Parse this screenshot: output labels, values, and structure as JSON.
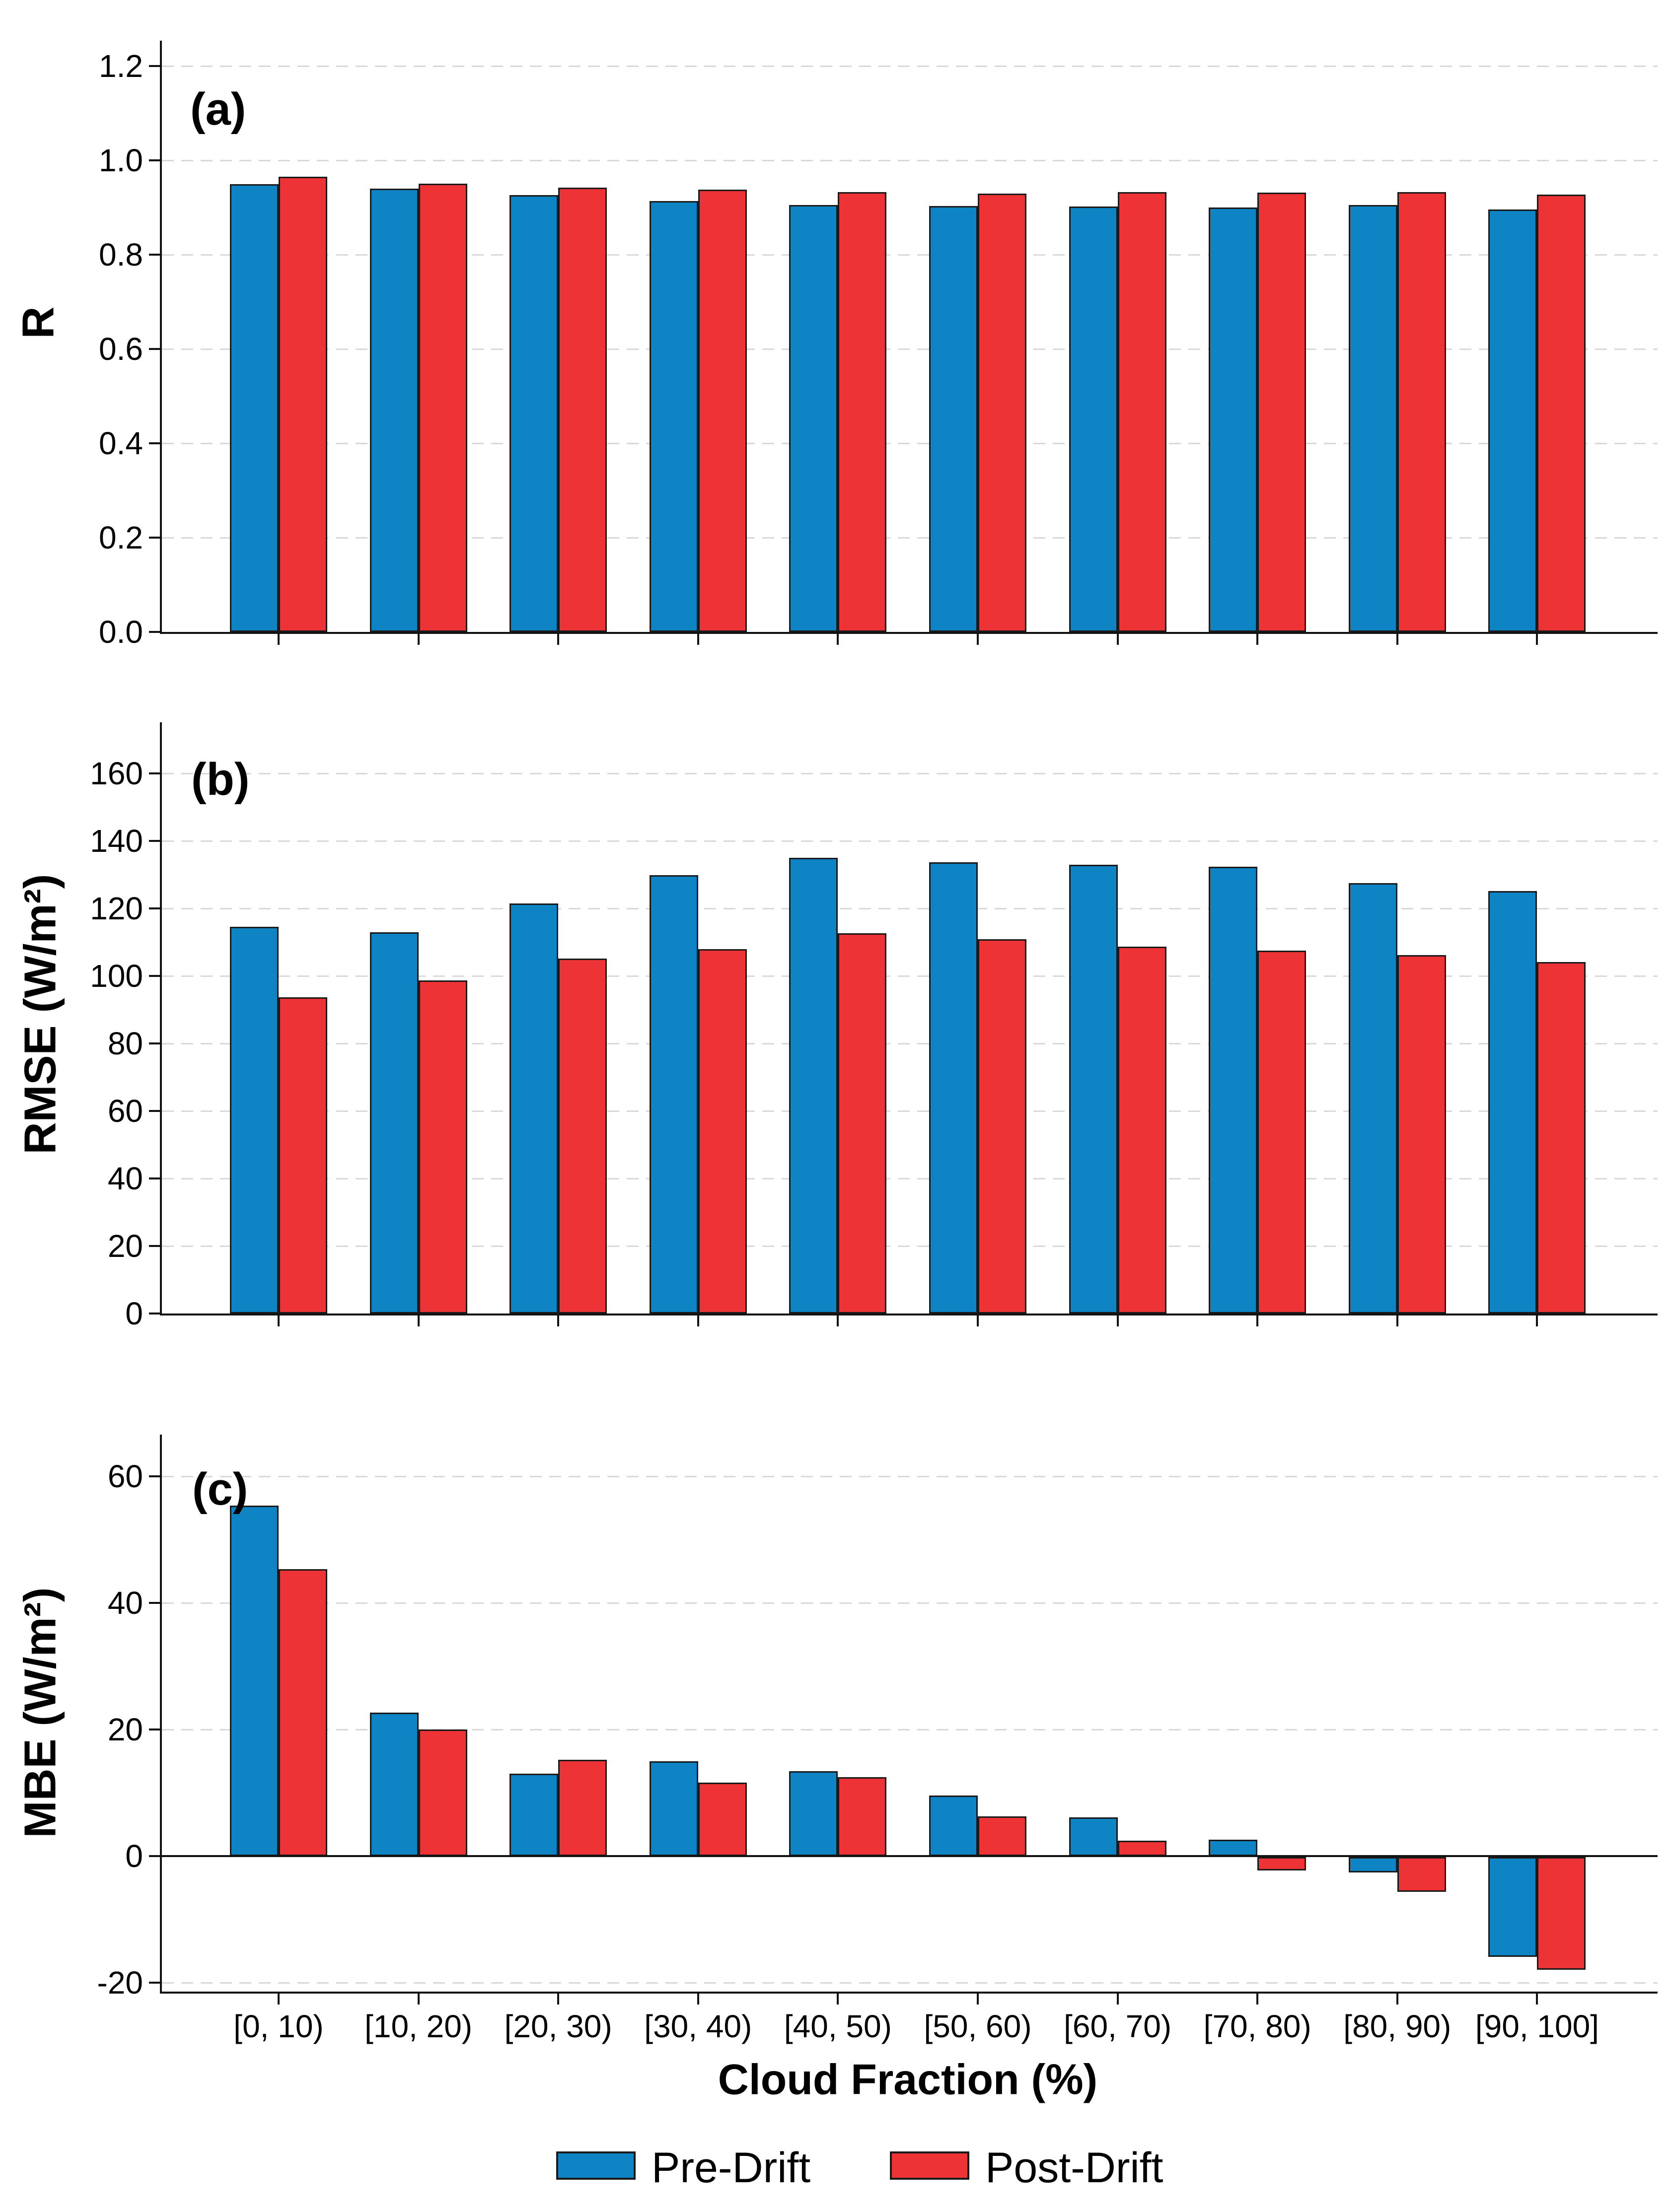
{
  "chart_data": {
    "type": "bar",
    "title": "",
    "xlabel": "Cloud Fraction (%)",
    "grid": "horizontal-dashed",
    "legend_position": "bottom",
    "categories": [
      "[0, 10)",
      "[10, 20)",
      "[20, 30)",
      "[30, 40)",
      "[40, 50)",
      "[50, 60)",
      "[60, 70)",
      "[70, 80)",
      "[80, 90)",
      "[90, 100]"
    ],
    "panels": [
      {
        "letter": "(a)",
        "ylabel": "R",
        "ylim": [
          0,
          1.28
        ],
        "yticks": [
          {
            "value": 0.0,
            "label": "0.0"
          },
          {
            "value": 0.2,
            "label": "0.2"
          },
          {
            "value": 0.4,
            "label": "0.4"
          },
          {
            "value": 0.6,
            "label": "0.6"
          },
          {
            "value": 0.8,
            "label": "0.8"
          },
          {
            "value": 1.0,
            "label": "1.0"
          },
          {
            "value": 1.2,
            "label": "1.2"
          }
        ],
        "series": [
          {
            "name": "Pre-Drift",
            "color": "#0E84C4",
            "values": [
              0.95,
              0.94,
              0.926,
              0.914,
              0.905,
              0.903,
              0.902,
              0.9,
              0.905,
              0.896
            ]
          },
          {
            "name": "Post-Drift",
            "color": "#EE3336",
            "values": [
              0.965,
              0.951,
              0.942,
              0.938,
              0.933,
              0.929,
              0.933,
              0.932,
              0.933,
              0.927
            ]
          }
        ]
      },
      {
        "letter": "(b)",
        "ylabel": "RMSE (W/m²)",
        "ylim": [
          0,
          175
        ],
        "yticks": [
          {
            "value": 0,
            "label": "0"
          },
          {
            "value": 20,
            "label": "20"
          },
          {
            "value": 40,
            "label": "40"
          },
          {
            "value": 60,
            "label": "60"
          },
          {
            "value": 80,
            "label": "80"
          },
          {
            "value": 100,
            "label": "100"
          },
          {
            "value": 120,
            "label": "120"
          },
          {
            "value": 140,
            "label": "140"
          },
          {
            "value": 160,
            "label": "160"
          }
        ],
        "series": [
          {
            "name": "Pre-Drift",
            "color": "#0E84C4",
            "values": [
              114.6,
              112.9,
              121.4,
              129.8,
              135.0,
              133.7,
              133.0,
              132.3,
              127.5,
              125.1
            ]
          },
          {
            "name": "Post-Drift",
            "color": "#EE3336",
            "values": [
              93.7,
              98.7,
              105.2,
              108.0,
              112.6,
              110.9,
              108.7,
              107.5,
              106.2,
              104.1
            ]
          }
        ]
      },
      {
        "letter": "(c)",
        "ylabel": "MBE (W/m²)",
        "ylim": [
          -21.5,
          66.5
        ],
        "yticks": [
          {
            "value": -20,
            "label": "-20"
          },
          {
            "value": 0,
            "label": "0"
          },
          {
            "value": 20,
            "label": "20"
          },
          {
            "value": 40,
            "label": "40"
          },
          {
            "value": 60,
            "label": "60"
          }
        ],
        "series": [
          {
            "name": "Pre-Drift",
            "color": "#0E84C4",
            "values": [
              55.4,
              22.7,
              13.0,
              15.0,
              13.4,
              9.6,
              6.1,
              2.6,
              -2.4,
              -15.8
            ]
          },
          {
            "name": "Post-Drift",
            "color": "#EE3336",
            "values": [
              45.3,
              20.0,
              15.2,
              11.6,
              12.5,
              6.3,
              2.4,
              -2.1,
              -5.5,
              -17.8
            ]
          }
        ]
      }
    ]
  }
}
